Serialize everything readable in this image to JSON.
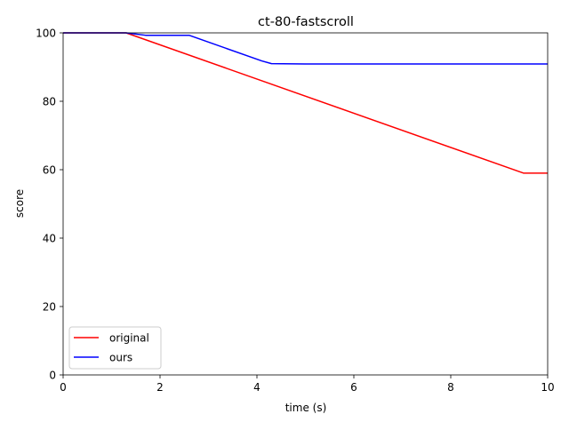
{
  "chart_data": {
    "type": "line",
    "title": "ct-80-fastscroll",
    "xlabel": "time (s)",
    "ylabel": "score",
    "xlim": [
      0,
      10
    ],
    "ylim": [
      0,
      100
    ],
    "xticks": [
      0,
      2,
      4,
      6,
      8,
      10
    ],
    "yticks": [
      0,
      20,
      40,
      60,
      80,
      100
    ],
    "grid": false,
    "legend_position": "lower-left",
    "series": [
      {
        "name": "original",
        "color": "#ff0000",
        "x": [
          0,
          1.3,
          9.5,
          10
        ],
        "y": [
          100,
          100,
          59,
          59
        ]
      },
      {
        "name": "ours",
        "color": "#0000ff",
        "x": [
          0,
          1.3,
          1.7,
          2.6,
          4.1,
          4.3,
          5.0,
          10
        ],
        "y": [
          100,
          100,
          99.3,
          99.3,
          91.8,
          91,
          90.9,
          90.9
        ]
      }
    ]
  }
}
